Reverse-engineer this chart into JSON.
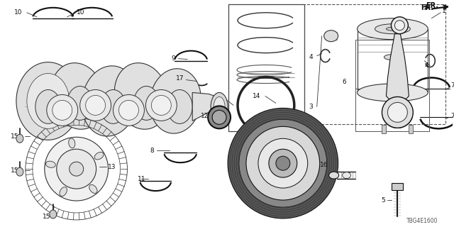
{
  "bg_color": "#ffffff",
  "line_color": "#333333",
  "dark_color": "#111111",
  "gray_color": "#888888",
  "diagram_code": "TBG4E1600",
  "label_fs": 6.5,
  "small_fs": 5.5
}
